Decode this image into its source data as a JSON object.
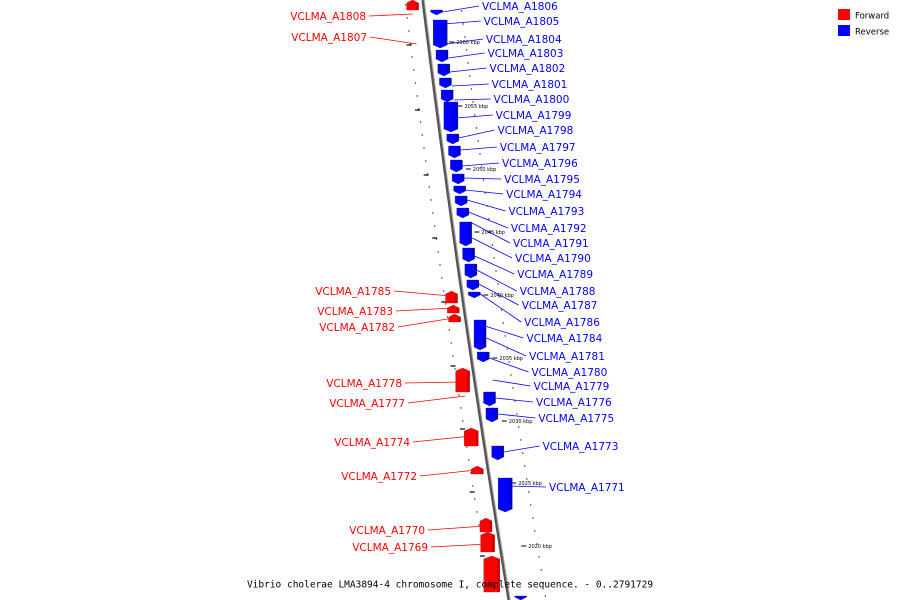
{
  "legend": {
    "forward": {
      "label": "Forward",
      "color": "#ff0000"
    },
    "reverse": {
      "label": "Reverse",
      "color": "#0000ff"
    }
  },
  "caption": "Vibrio cholerae LMA3894-4 chromosome I, complete sequence. - 0..2791729",
  "ticks": [
    "2060 kbp",
    "2055 kbp",
    "2050 kbp",
    "2045 kbp",
    "2040 kbp",
    "2035 kbp",
    "2030 kbp",
    "2025 kbp",
    "2020 kbp"
  ],
  "reverse_labels": [
    "VCLMA_A1806",
    "VCLMA_A1805",
    "VCLMA_A1804",
    "VCLMA_A1803",
    "VCLMA_A1802",
    "VCLMA_A1801",
    "VCLMA_A1800",
    "VCLMA_A1799",
    "VCLMA_A1798",
    "VCLMA_A1797",
    "VCLMA_A1796",
    "VCLMA_A1795",
    "VCLMA_A1794",
    "VCLMA_A1793",
    "VCLMA_A1792",
    "VCLMA_A1791",
    "VCLMA_A1790",
    "VCLMA_A1789",
    "VCLMA_A1788",
    "VCLMA_A1787",
    "VCLMA_A1786",
    "VCLMA_A1784",
    "VCLMA_A1781",
    "VCLMA_A1780",
    "VCLMA_A1779",
    "VCLMA_A1776",
    "VCLMA_A1775",
    "VCLMA_A1773",
    "VCLMA_A1771"
  ],
  "forward_labels": [
    "VCLMA_A1808",
    "VCLMA_A1807",
    "VCLMA_A1785",
    "VCLMA_A1783",
    "VCLMA_A1782",
    "VCLMA_A1778",
    "VCLMA_A1777",
    "VCLMA_A1774",
    "VCLMA_A1772",
    "VCLMA_A1770",
    "VCLMA_A1769"
  ]
}
